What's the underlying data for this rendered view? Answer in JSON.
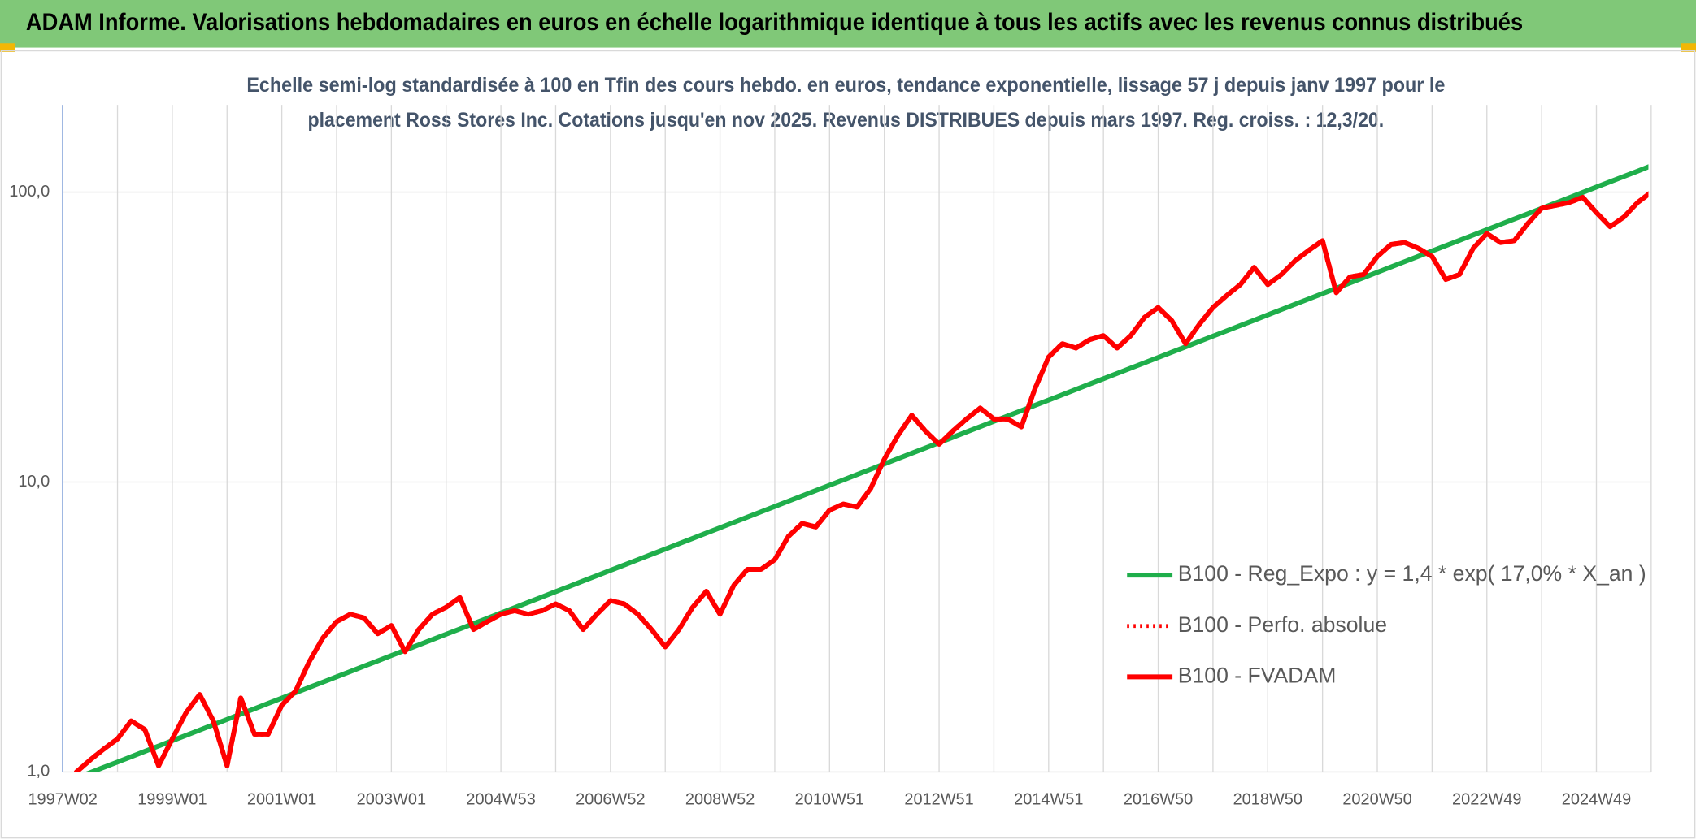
{
  "header": {
    "title": "ADAM Informe. Valorisations hebdomadaires en euros en échelle logarithmique identique à tous les actifs avec les revenus connus distribués"
  },
  "chart_data": {
    "type": "line",
    "subtitle": [
      "Echelle semi-log standardisée à 100 en Tfin des cours hebdo. en euros, tendance exponentielle, lissage 57 j depuis janv 1997 pour le",
      "placement Ross Stores Inc. Cotations jusqu'en nov 2025. Revenus DISTRIBUES depuis mars 1997. Reg. croiss. : 12,3/20."
    ],
    "log_scale": true,
    "grid": true,
    "legend_position": "right",
    "ylim": [
      1,
      200
    ],
    "yticks": [
      {
        "value": 1,
        "label": "1,0"
      },
      {
        "value": 10,
        "label": "10,0"
      },
      {
        "value": 100,
        "label": "100,0"
      }
    ],
    "categories": [
      "1997W02",
      null,
      null,
      null,
      null,
      null,
      null,
      null,
      "1999W01",
      null,
      null,
      null,
      null,
      null,
      null,
      null,
      "2001W01",
      null,
      null,
      null,
      null,
      null,
      null,
      null,
      "2003W01",
      null,
      null,
      null,
      null,
      null,
      null,
      null,
      "2004W53",
      null,
      null,
      null,
      null,
      null,
      null,
      null,
      "2006W52",
      null,
      null,
      null,
      null,
      null,
      null,
      null,
      "2008W52",
      null,
      null,
      null,
      null,
      null,
      null,
      null,
      "2010W51",
      null,
      null,
      null,
      null,
      null,
      null,
      null,
      "2012W51",
      null,
      null,
      null,
      null,
      null,
      null,
      null,
      "2014W51",
      null,
      null,
      null,
      null,
      null,
      null,
      null,
      "2016W50",
      null,
      null,
      null,
      null,
      null,
      null,
      null,
      "2018W50",
      null,
      null,
      null,
      null,
      null,
      null,
      null,
      "2020W50",
      null,
      null,
      null,
      null,
      null,
      null,
      null,
      "2022W49",
      null,
      null,
      null,
      null,
      null,
      null,
      null,
      "2024W49",
      null,
      null,
      null,
      null
    ],
    "series": [
      {
        "name": "B100 - Reg_Expo : y = 1,4 * exp( 17,0% *  X_an )",
        "color": "#1fae4b",
        "style": "solid",
        "values": [
          0.914,
          0.954,
          0.995,
          1.038,
          1.082,
          1.129,
          1.178,
          1.229,
          1.282,
          1.337,
          1.395,
          1.455,
          1.518,
          1.584,
          1.652,
          1.724,
          1.798,
          1.876,
          1.957,
          2.041,
          2.129,
          2.221,
          2.317,
          2.417,
          2.521,
          2.63,
          2.744,
          2.862,
          2.986,
          3.114,
          3.249,
          3.389,
          3.536,
          3.688,
          3.847,
          4.014,
          4.188,
          4.368,
          4.557,
          4.753,
          4.96,
          5.174,
          5.397,
          5.63,
          5.873,
          6.127,
          6.392,
          6.668,
          6.956,
          7.256,
          7.568,
          7.897,
          8.237,
          8.594,
          8.964,
          9.35,
          9.754,
          10.17,
          10.61,
          11.07,
          11.55,
          12.05,
          12.57,
          13.11,
          13.68,
          14.27,
          14.89,
          15.53,
          16.2,
          16.9,
          17.63,
          18.39,
          19.18,
          20.01,
          20.87,
          21.78,
          22.72,
          23.7,
          24.72,
          25.79,
          26.9,
          28.06,
          29.27,
          30.54,
          31.86,
          33.23,
          34.67,
          36.16,
          37.73,
          39.36,
          41.06,
          42.83,
          44.68,
          46.61,
          48.62,
          50.72,
          52.92,
          55.2,
          57.59,
          60.07,
          62.66,
          65.37,
          68.19,
          71.14,
          74.21,
          77.42,
          80.76,
          84.25,
          87.89,
          91.68,
          95.64,
          99.77,
          104.1,
          108.6,
          113.2,
          118.1,
          123.3
        ]
      },
      {
        "name": "B100 - Perfo. absolue",
        "color": "#ff0000",
        "style": "dotted",
        "values": [
          null,
          1.0,
          1.1,
          1.2,
          1.3,
          1.5,
          1.4,
          1.05,
          1.3,
          1.6,
          1.85,
          1.5,
          1.05,
          1.8,
          1.35,
          1.35,
          1.7,
          1.9,
          2.4,
          2.9,
          3.3,
          3.5,
          3.4,
          3.0,
          3.2,
          2.6,
          3.1,
          3.5,
          3.7,
          4.0,
          3.1,
          3.3,
          3.5,
          3.6,
          3.5,
          3.6,
          3.8,
          3.6,
          3.1,
          3.5,
          3.9,
          3.8,
          3.5,
          3.1,
          2.7,
          3.1,
          3.7,
          4.2,
          3.5,
          4.4,
          5.0,
          5.0,
          5.4,
          6.5,
          7.2,
          7.0,
          8.0,
          8.4,
          8.2,
          9.5,
          12,
          14.5,
          17,
          15,
          13.5,
          15,
          16.5,
          18,
          16.5,
          16.5,
          15.5,
          21,
          27,
          30,
          29,
          31,
          32,
          29,
          32,
          37,
          40,
          36,
          30,
          35,
          40,
          44,
          48,
          55,
          48,
          52,
          58,
          63,
          68,
          45,
          51,
          52,
          60,
          66,
          67,
          64,
          60,
          50,
          52,
          64,
          72,
          67,
          68,
          78,
          88,
          90,
          92,
          96,
          85,
          76,
          82,
          92,
          100
        ]
      },
      {
        "name": "B100 - FVADAM",
        "color": "#ff0000",
        "style": "solid",
        "values": [
          null,
          1.0,
          1.1,
          1.2,
          1.3,
          1.5,
          1.4,
          1.05,
          1.3,
          1.6,
          1.85,
          1.5,
          1.05,
          1.8,
          1.35,
          1.35,
          1.7,
          1.9,
          2.4,
          2.9,
          3.3,
          3.5,
          3.4,
          3.0,
          3.2,
          2.6,
          3.1,
          3.5,
          3.7,
          4.0,
          3.1,
          3.3,
          3.5,
          3.6,
          3.5,
          3.6,
          3.8,
          3.6,
          3.1,
          3.5,
          3.9,
          3.8,
          3.5,
          3.1,
          2.7,
          3.1,
          3.7,
          4.2,
          3.5,
          4.4,
          5.0,
          5.0,
          5.4,
          6.5,
          7.2,
          7.0,
          8.0,
          8.4,
          8.2,
          9.5,
          12,
          14.5,
          17,
          15,
          13.5,
          15,
          16.5,
          18,
          16.5,
          16.5,
          15.5,
          21,
          27,
          30,
          29,
          31,
          32,
          29,
          32,
          37,
          40,
          36,
          30,
          35,
          40,
          44,
          48,
          55,
          48,
          52,
          58,
          63,
          68,
          45,
          51,
          52,
          60,
          66,
          67,
          64,
          60,
          50,
          52,
          64,
          72,
          67,
          68,
          78,
          88,
          90,
          92,
          96,
          85,
          76,
          82,
          92,
          100
        ]
      }
    ]
  }
}
